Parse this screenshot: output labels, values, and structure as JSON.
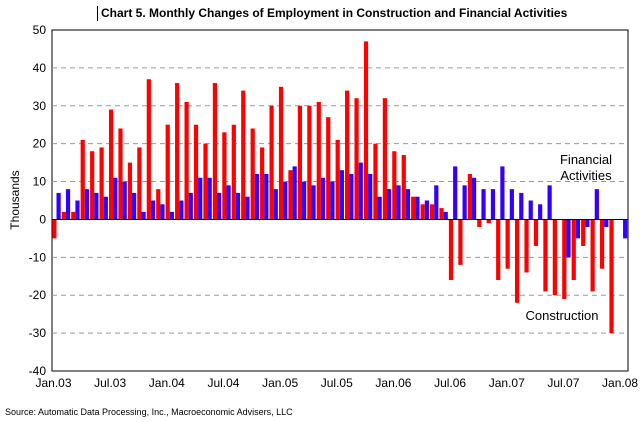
{
  "chart_data": {
    "type": "bar",
    "title": "Chart 5.  Monthly Changes of Employment in Construction and Financial Activities",
    "ylabel": "Thousands",
    "xlabel": "",
    "ylim": [
      -40,
      50
    ],
    "yticks": [
      -40,
      -30,
      -20,
      -10,
      0,
      10,
      20,
      30,
      40,
      50
    ],
    "grid": true,
    "categories": [
      "Jan.03",
      "Feb.03",
      "Mar.03",
      "Apr.03",
      "May.03",
      "Jun.03",
      "Jul.03",
      "Aug.03",
      "Sep.03",
      "Oct.03",
      "Nov.03",
      "Dec.03",
      "Jan.04",
      "Feb.04",
      "Mar.04",
      "Apr.04",
      "May.04",
      "Jun.04",
      "Jul.04",
      "Aug.04",
      "Sep.04",
      "Oct.04",
      "Nov.04",
      "Dec.04",
      "Jan.05",
      "Feb.05",
      "Mar.05",
      "Apr.05",
      "May.05",
      "Jun.05",
      "Jul.05",
      "Aug.05",
      "Sep.05",
      "Oct.05",
      "Nov.05",
      "Dec.05",
      "Jan.06",
      "Feb.06",
      "Mar.06",
      "Apr.06",
      "May.06",
      "Jun.06",
      "Jul.06",
      "Aug.06",
      "Sep.06",
      "Oct.06",
      "Nov.06",
      "Dec.06",
      "Jan.07",
      "Feb.07",
      "Mar.07",
      "Apr.07",
      "May.07",
      "Jun.07",
      "Jul.07",
      "Aug.07",
      "Sep.07",
      "Oct.07",
      "Nov.07",
      "Dec.07",
      "Jan.08"
    ],
    "xtick_labels": [
      "Jan.03",
      "Jul.03",
      "Jan.04",
      "Jul.04",
      "Jan.05",
      "Jul.05",
      "Jan.06",
      "Jul.06",
      "Jan.07",
      "Jul.07",
      "Jan.08"
    ],
    "series": [
      {
        "name": "Construction",
        "color": "#ff0000",
        "values": [
          -5,
          2,
          2,
          21,
          18,
          19,
          29,
          24,
          15,
          19,
          37,
          8,
          25,
          36,
          31,
          25,
          20,
          36,
          23,
          25,
          34,
          24,
          19,
          30,
          35,
          13,
          30,
          30,
          31,
          27,
          21,
          34,
          32,
          47,
          20,
          32,
          18,
          17,
          6,
          4,
          4,
          3,
          -16,
          -12,
          12,
          -2,
          -1,
          -16,
          -13,
          -22,
          -14,
          -7,
          -19,
          -20,
          -21,
          -16,
          -7,
          -19,
          -13,
          -30,
          0
        ]
      },
      {
        "name": "Financial Activities",
        "color": "#3300ff",
        "values": [
          7,
          8,
          5,
          8,
          7,
          6,
          11,
          10,
          7,
          2,
          5,
          4,
          2,
          5,
          7,
          11,
          11,
          7,
          9,
          7,
          6,
          12,
          12,
          8,
          10,
          14,
          10,
          9,
          11,
          10,
          13,
          12,
          15,
          12,
          6,
          8,
          9,
          8,
          6,
          5,
          9,
          2,
          14,
          9,
          11,
          8,
          8,
          14,
          8,
          7,
          5,
          4,
          9,
          0,
          -10,
          -5,
          -2,
          8,
          -2,
          0,
          -5
        ]
      }
    ],
    "annotations": [
      {
        "text": "Financial",
        "series": "Financial Activities"
      },
      {
        "text": "Activities",
        "series": "Financial Activities"
      },
      {
        "text": "Construction",
        "series": "Construction"
      }
    ],
    "source": "Source: Automatic Data Processing, Inc., Macroeconomic Advisers, LLC"
  }
}
